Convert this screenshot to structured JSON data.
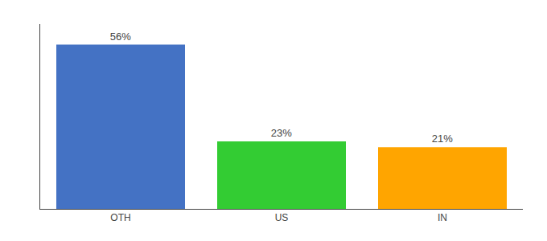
{
  "chart_data": {
    "type": "bar",
    "categories": [
      "OTH",
      "US",
      "IN"
    ],
    "values": [
      56,
      23,
      21
    ],
    "value_labels": [
      "56%",
      "23%",
      "21%"
    ],
    "colors": [
      "#4472C4",
      "#33CC33",
      "#FFA500"
    ],
    "data_labels": true,
    "ylim": [
      0,
      63
    ],
    "grid": false,
    "tick_labels": "x"
  }
}
